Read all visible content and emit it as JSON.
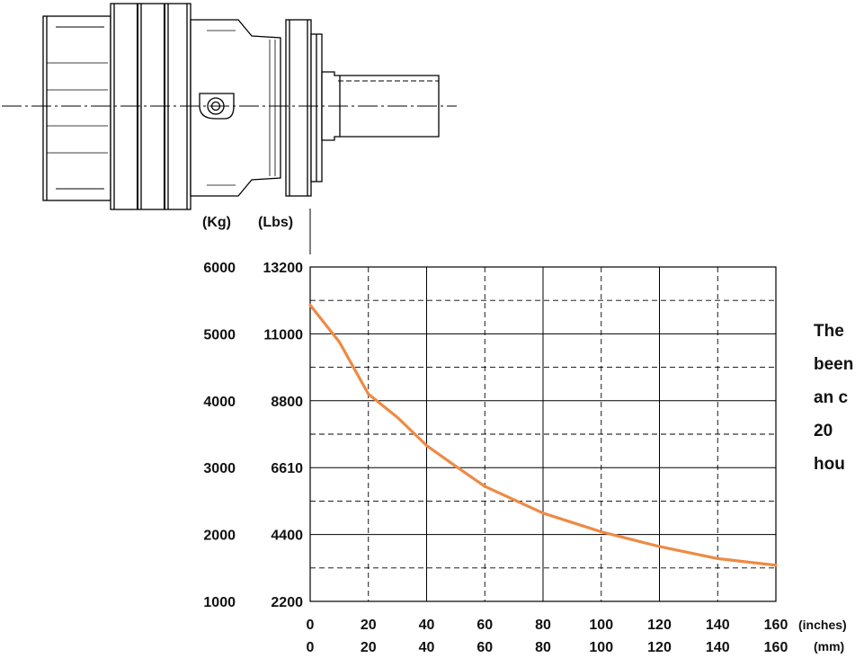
{
  "chart_data": {
    "type": "line",
    "title": "",
    "y_units_left": "(Kg)",
    "y_units_right": "(Lbs)",
    "x_units_top": "(inches)",
    "x_units_bottom": "(mm)",
    "yticks_kg": [
      "6000",
      "5000",
      "4000",
      "3000",
      "2000",
      "1000"
    ],
    "yticks_lbs": [
      "13200",
      "11000",
      "8800",
      "6610",
      "4400",
      "2200"
    ],
    "xticks_inches": [
      "0",
      "20",
      "40",
      "60",
      "80",
      "100",
      "120",
      "140",
      "160"
    ],
    "xticks_mm": [
      "0",
      "20",
      "40",
      "60",
      "80",
      "100",
      "120",
      "140",
      "160"
    ],
    "xlim": [
      0,
      160
    ],
    "ylim_kg": [
      1000,
      6000
    ],
    "grid": true,
    "line_color": "#EE8A45",
    "series": [
      {
        "x": [
          0,
          10,
          20,
          30,
          40,
          50,
          60,
          70,
          80,
          90,
          100,
          110,
          120,
          130,
          140,
          150,
          160
        ],
        "y": [
          5430,
          4880,
          4100,
          3750,
          3330,
          3020,
          2720,
          2520,
          2320,
          2180,
          2040,
          1930,
          1820,
          1730,
          1640,
          1590,
          1540
        ]
      }
    ]
  },
  "side_text_lines": [
    "The",
    "been",
    "an c",
    "20",
    "hou"
  ]
}
